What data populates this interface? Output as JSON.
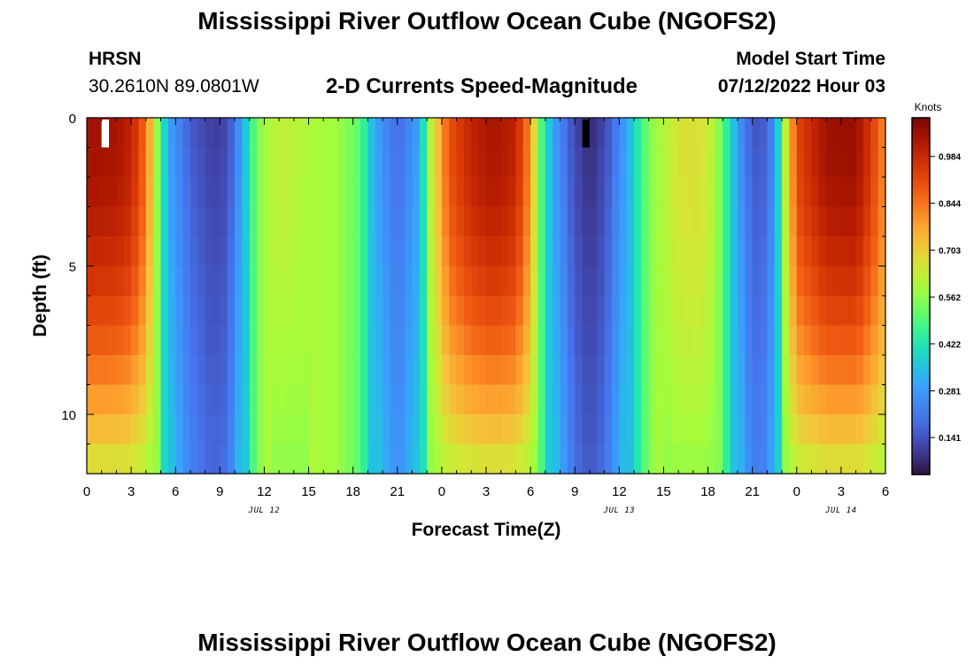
{
  "page": {
    "title_top": "Mississippi River Outflow Ocean Cube (NGOFS2)",
    "title_bottom": "Mississippi River Outflow Ocean Cube (NGOFS2)",
    "station_code": "HRSN",
    "station_coords": "30.2610N  89.0801W",
    "plot_title": "2-D Currents Speed-Magnitude",
    "model_start_label": "Model Start Time",
    "model_start_value": "07/12/2022 Hour 03"
  },
  "chart_data": {
    "type": "heatmap",
    "title": "2-D Currents Speed-Magnitude",
    "xlabel": "Forecast Time(Z)",
    "ylabel": "Depth (ft)",
    "colorbar_label": "Knots",
    "x_range_hours": [
      0,
      54
    ],
    "y_range_ft": [
      0,
      12
    ],
    "x_ticks": [
      {
        "hour": 0,
        "label": "0"
      },
      {
        "hour": 3,
        "label": "3"
      },
      {
        "hour": 6,
        "label": "6"
      },
      {
        "hour": 9,
        "label": "9"
      },
      {
        "hour": 12,
        "label": "12"
      },
      {
        "hour": 15,
        "label": "15"
      },
      {
        "hour": 18,
        "label": "18"
      },
      {
        "hour": 21,
        "label": "21"
      },
      {
        "hour": 24,
        "label": "0"
      },
      {
        "hour": 27,
        "label": "3"
      },
      {
        "hour": 30,
        "label": "6"
      },
      {
        "hour": 33,
        "label": "9"
      },
      {
        "hour": 36,
        "label": "12"
      },
      {
        "hour": 39,
        "label": "15"
      },
      {
        "hour": 42,
        "label": "18"
      },
      {
        "hour": 45,
        "label": "21"
      },
      {
        "hour": 48,
        "label": "0"
      },
      {
        "hour": 51,
        "label": "3"
      },
      {
        "hour": 54,
        "label": "6"
      }
    ],
    "date_labels": [
      {
        "hour": 12,
        "label": "JUL 12"
      },
      {
        "hour": 36,
        "label": "JUL 13"
      },
      {
        "hour": 51,
        "label": "JUL 14"
      }
    ],
    "y_ticks": [
      {
        "depth": 0,
        "label": "0"
      },
      {
        "depth": 5,
        "label": "5"
      },
      {
        "depth": 10,
        "label": "10"
      }
    ],
    "colorbar_ticks": [
      {
        "value": 0.984,
        "label": "0.984"
      },
      {
        "value": 0.844,
        "label": "0.844"
      },
      {
        "value": 0.703,
        "label": "0.703"
      },
      {
        "value": 0.562,
        "label": "0.562"
      },
      {
        "value": 0.422,
        "label": "0.422"
      },
      {
        "value": 0.281,
        "label": "0.281"
      },
      {
        "value": 0.141,
        "label": "0.141"
      }
    ],
    "colorbar_range": [
      0.03,
      1.1
    ],
    "time_step_hours": 0.5,
    "depth_levels": 12,
    "speed_surface_profile_knots": [
      [
        0,
        1.05
      ],
      [
        2,
        1.04
      ],
      [
        3,
        1.0
      ],
      [
        4,
        0.85
      ],
      [
        4.8,
        0.55
      ],
      [
        5.5,
        0.3
      ],
      [
        7,
        0.16
      ],
      [
        8.5,
        0.1
      ],
      [
        9.5,
        0.12
      ],
      [
        10.5,
        0.3
      ],
      [
        11.5,
        0.55
      ],
      [
        13,
        0.63
      ],
      [
        15,
        0.6
      ],
      [
        17,
        0.58
      ],
      [
        18.5,
        0.5
      ],
      [
        19.5,
        0.3
      ],
      [
        21,
        0.18
      ],
      [
        22.5,
        0.3
      ],
      [
        23.2,
        0.6
      ],
      [
        24.5,
        0.9
      ],
      [
        26,
        1.0
      ],
      [
        27.5,
        1.04
      ],
      [
        29,
        1.0
      ],
      [
        30,
        0.8
      ],
      [
        30.5,
        0.55
      ],
      [
        31.5,
        0.3
      ],
      [
        33,
        0.12
      ],
      [
        34,
        0.07
      ],
      [
        35,
        0.12
      ],
      [
        36.5,
        0.3
      ],
      [
        38,
        0.55
      ],
      [
        40,
        0.66
      ],
      [
        41.5,
        0.67
      ],
      [
        42.5,
        0.6
      ],
      [
        43.5,
        0.4
      ],
      [
        44.5,
        0.2
      ],
      [
        45.5,
        0.13
      ],
      [
        46.5,
        0.25
      ],
      [
        47.2,
        0.6
      ],
      [
        48,
        0.92
      ],
      [
        50,
        1.05
      ],
      [
        52,
        1.06
      ],
      [
        53,
        0.95
      ],
      [
        54,
        0.8
      ]
    ],
    "missing_cells": [
      {
        "hour": 1,
        "depth_bin": 0,
        "color": "#ffffff"
      },
      {
        "hour": 33.5,
        "depth_bin": 0,
        "color": "#000000"
      }
    ]
  }
}
